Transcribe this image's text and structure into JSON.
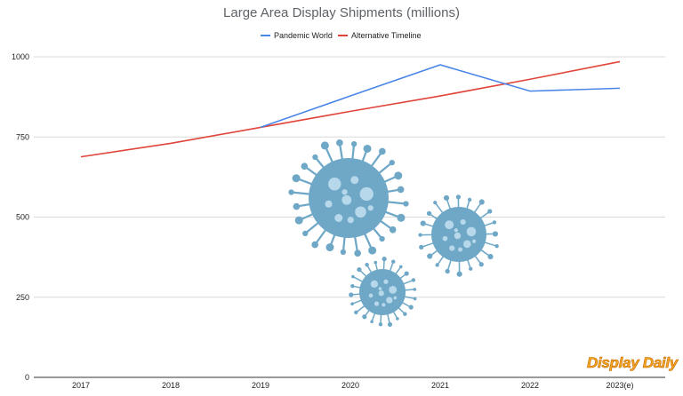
{
  "chart_data": {
    "type": "line",
    "title": "Large Area Display Shipments (millions)",
    "xlabel": "",
    "ylabel": "",
    "categories": [
      "2017",
      "2018",
      "2019",
      "2020",
      "2021",
      "2022",
      "2023(e)"
    ],
    "ylim": [
      0,
      1000
    ],
    "yticks": [
      0,
      250,
      500,
      750,
      1000
    ],
    "grid": true,
    "legend_position": "top-center",
    "series": [
      {
        "name": "Pandemic World",
        "color": "#4a86e8",
        "values": [
          null,
          null,
          780,
          878,
          975,
          893,
          902
        ]
      },
      {
        "name": "Alternative Timeline",
        "color": "#e0443a",
        "values": [
          688,
          730,
          780,
          830,
          878,
          930,
          985
        ]
      }
    ]
  },
  "watermark": {
    "text": "Display Daily",
    "color": "#f5a623",
    "icon": "virus-illustration"
  },
  "decoration": {
    "icon": "virus-icon",
    "color": "#6fa8c7"
  }
}
